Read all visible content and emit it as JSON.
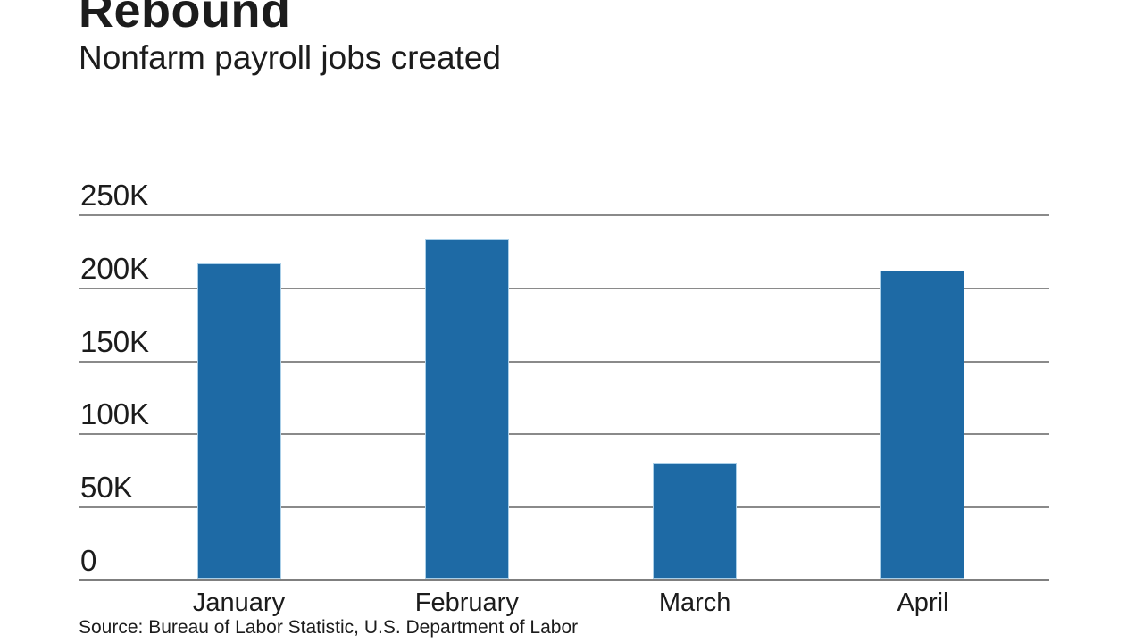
{
  "chart_data": {
    "type": "bar",
    "title": "Rebound",
    "subtitle": "Nonfarm payroll jobs created",
    "source": "Source: Bureau of Labor Statistic, U.S. Department of Labor",
    "categories": [
      "January",
      "February",
      "March",
      "April"
    ],
    "values": [
      216000,
      232000,
      79000,
      211000
    ],
    "ylim": [
      0,
      250000
    ],
    "yticks": [
      {
        "value": 0,
        "label": "0"
      },
      {
        "value": 50000,
        "label": "50K"
      },
      {
        "value": 100000,
        "label": "100K"
      },
      {
        "value": 150000,
        "label": "150K"
      },
      {
        "value": 200000,
        "label": "200K"
      },
      {
        "value": 250000,
        "label": "250K"
      }
    ],
    "grid": "horizontal",
    "legend": "none",
    "colors": {
      "bar_fill": "#1e6aa5",
      "bar_border": "#aacfe8",
      "gridline": "#8a8a8a",
      "axis_line": "#7f7f7f",
      "text": "#1c1c1c",
      "background": "#ffffff"
    }
  }
}
